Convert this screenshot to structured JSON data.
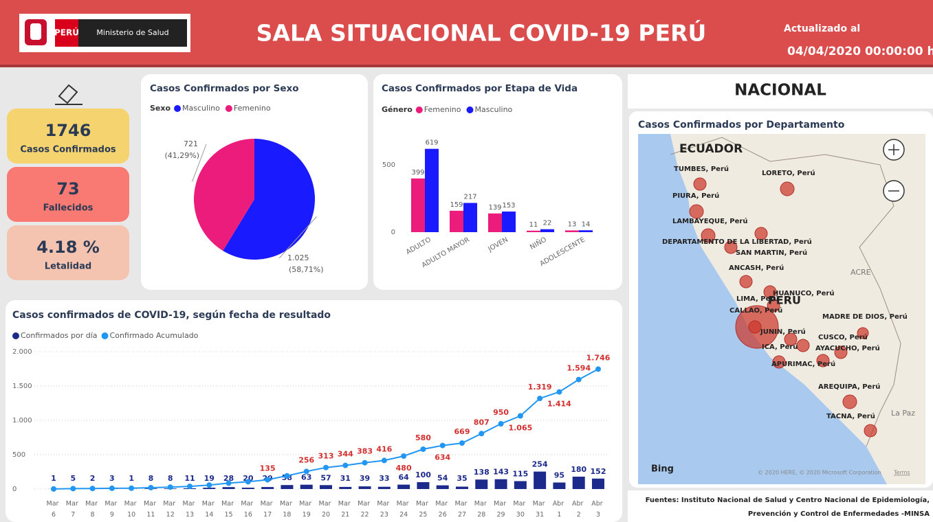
{
  "header": {
    "country": "PERÚ",
    "ministry": "Ministerio de Salud",
    "title": "SALA SITUACIONAL COVID-19 PERÚ",
    "updated_label": "Actualizado al",
    "updated": "04/04/2020 00:00:00 hs"
  },
  "kpis": [
    {
      "value": "1746",
      "label": "Casos Confirmados",
      "color": "#f5d36e"
    },
    {
      "value": "73",
      "label": "Fallecidos",
      "color": "#f97a72"
    },
    {
      "value": "4.18 %",
      "label": "Letalidad",
      "color": "#f5c4b0"
    }
  ],
  "chart_data": [
    {
      "type": "pie",
      "title": "Casos Confirmados por Sexo",
      "legend_title": "Sexo",
      "categories": [
        "Masculino",
        "Femenino"
      ],
      "values": [
        1025,
        721
      ],
      "value_labels": [
        "1.025",
        "721"
      ],
      "percents": [
        58.71,
        41.29
      ],
      "percent_labels": [
        "(58,71%)",
        "(41,29%)"
      ],
      "colors": [
        "#1a1aff",
        "#ec1c7c"
      ]
    },
    {
      "type": "bar",
      "title": "Casos Confirmados por Etapa de Vida",
      "legend_title": "Género",
      "categories": [
        "ADULTO",
        "ADULTO MAYOR",
        "JOVEN",
        "NIÑO",
        "ADOLESCENTE"
      ],
      "series": [
        {
          "name": "Femenino",
          "color": "#ec1c7c",
          "values": [
            399,
            159,
            139,
            11,
            13
          ]
        },
        {
          "name": "Masculino",
          "color": "#1a1aff",
          "values": [
            619,
            217,
            153,
            22,
            14
          ]
        }
      ],
      "ylim": [
        0,
        650
      ],
      "yticks": [
        0,
        500
      ]
    },
    {
      "type": "combo",
      "title": "Casos confirmados de COVID-19, según fecha de resultado",
      "categories": [
        "Mar 6",
        "Mar 7",
        "Mar 8",
        "Mar 9",
        "Mar 10",
        "Mar 11",
        "Mar 12",
        "Mar 13",
        "Mar 14",
        "Mar 15",
        "Mar 16",
        "Mar 17",
        "Mar 18",
        "Mar 19",
        "Mar 20",
        "Mar 21",
        "Mar 22",
        "Mar 23",
        "Mar 24",
        "Mar 25",
        "Mar 26",
        "Mar 27",
        "Mar 28",
        "Mar 29",
        "Mar 30",
        "Mar 31",
        "Abr 1",
        "Abr 2",
        "Abr 3"
      ],
      "series": [
        {
          "name": "Confirmados por día",
          "color": "#1c2a8c",
          "kind": "bar",
          "values": [
            1,
            5,
            2,
            3,
            1,
            8,
            8,
            11,
            19,
            28,
            20,
            29,
            58,
            63,
            57,
            31,
            39,
            33,
            64,
            100,
            54,
            35,
            138,
            143,
            115,
            254,
            95,
            180,
            152
          ]
        },
        {
          "name": "Confirmado Acumulado",
          "color": "#2196f3",
          "kind": "line",
          "label_color": "#d32f2f",
          "values": [
            1,
            6,
            8,
            11,
            12,
            20,
            28,
            39,
            58,
            86,
            106,
            135,
            193,
            256,
            313,
            344,
            383,
            416,
            480,
            580,
            634,
            669,
            807,
            950,
            1065,
            1319,
            1414,
            1594,
            1746
          ],
          "value_labels": [
            null,
            null,
            null,
            null,
            null,
            null,
            null,
            null,
            null,
            null,
            null,
            "135",
            null,
            "256",
            "313",
            "344",
            "383",
            "416",
            "480",
            "580",
            "634",
            "669",
            "807",
            "950",
            "1.065",
            "1.319",
            "1.414",
            "1.594",
            "1.746"
          ]
        }
      ],
      "ylim": [
        0,
        2000
      ],
      "yticks": [
        0,
        500,
        {
          "value": 1000,
          "label": "1.000"
        },
        {
          "value": 1500,
          "label": "1.500"
        },
        {
          "value": 2000,
          "label": "2.000"
        }
      ],
      "grid": true
    }
  ],
  "map": {
    "heading": "NACIONAL",
    "title": "Casos Confirmados por Departamento",
    "labels": [
      "ECUADOR",
      "TUMBES, Perú",
      "LORETO, Perú",
      "PIURA, Perú",
      "LAMBAYEQUE, Perú",
      "DEPARTAMENTO DE LA LIBERTAD, Perú",
      "SAN MARTIN, Perú",
      "ANCASH, Perú",
      "HUANUCO, Perú",
      "LIMA, Perú",
      "CALLAO, Perú",
      "PERU",
      "MADRE DE DIOS, Perú",
      "JUNIN, Perú",
      "CUSCO, Perú",
      "ICA, Perú",
      "AYACUCHO, Perú",
      "APURIMAC, Perú",
      "AREQUIPA, Perú",
      "TACNA, Perú",
      "ACRE",
      "La Paz"
    ],
    "brand": "Bing",
    "copyright": "© 2020 HERE, © 2020 Microsoft Corporation",
    "terms": "Terms"
  },
  "footer": {
    "line1": "Fuentes: Instituto Nacional de Salud y Centro Nacional de Epidemiología,",
    "line2": "Prevención y Control de Enfermedades -MINSA"
  }
}
